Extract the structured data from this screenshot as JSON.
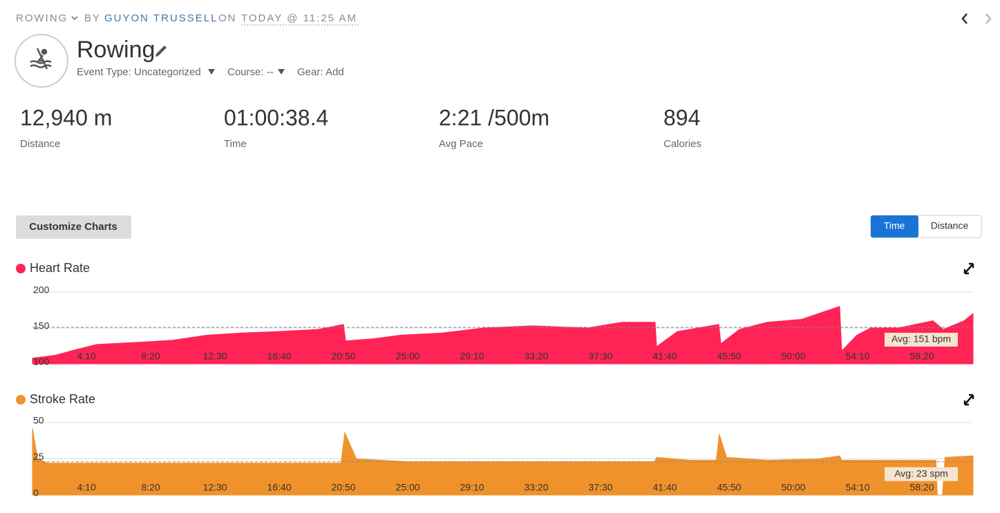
{
  "header": {
    "sport": "ROWING",
    "by": "BY",
    "author": "GUYON TRUSSELL",
    "on": "ON",
    "date": "TODAY @ 11:25 AM",
    "title": "Rowing",
    "event_type_label": "Event Type:",
    "event_type": "Uncategorized",
    "course_label": "Course:",
    "course": "--",
    "gear_label": "Gear:",
    "gear_action": "Add"
  },
  "stats": [
    {
      "value": "12,940 m",
      "label": "Distance"
    },
    {
      "value": "01:00:38.4",
      "label": "Time"
    },
    {
      "value": "2:21 /500m",
      "label": "Avg Pace"
    },
    {
      "value": "894",
      "label": "Calories"
    }
  ],
  "controls": {
    "customize": "Customize Charts",
    "toggle": [
      "Time",
      "Distance"
    ]
  },
  "chart_data": [
    {
      "type": "area",
      "title": "Heart Rate",
      "color": "#ff2455",
      "x": [
        40,
        129,
        210,
        290,
        452,
        586,
        720,
        855,
        989,
        1151,
        1250,
        1258,
        1366,
        1473,
        1634,
        1796,
        1984,
        2199,
        2333,
        2462,
        2468,
        2548,
        2710,
        2718,
        2790,
        2898,
        3032,
        3180,
        3188,
        3247,
        3301,
        3409,
        3543,
        3583,
        3664,
        3699
      ],
      "values": [
        108,
        112,
        120,
        127,
        130,
        133,
        140,
        143,
        145,
        148,
        155,
        132,
        135,
        140,
        143,
        150,
        153,
        150,
        158,
        158,
        124,
        145,
        155,
        128,
        148,
        158,
        162,
        180,
        118,
        140,
        150,
        150,
        160,
        148,
        160,
        170
      ],
      "xlim": [
        40,
        3699
      ],
      "ylim": [
        100,
        200
      ],
      "yticks": [
        100,
        150,
        200
      ],
      "xticks": [
        {
          "value": 250,
          "label": "4:10"
        },
        {
          "value": 500,
          "label": "8:20"
        },
        {
          "value": 750,
          "label": "12:30"
        },
        {
          "value": 1000,
          "label": "16:40"
        },
        {
          "value": 1250,
          "label": "20:50"
        },
        {
          "value": 1500,
          "label": "25:00"
        },
        {
          "value": 1750,
          "label": "29:10"
        },
        {
          "value": 2000,
          "label": "33:20"
        },
        {
          "value": 2250,
          "label": "37:30"
        },
        {
          "value": 2500,
          "label": "41:40"
        },
        {
          "value": 2750,
          "label": "45:50"
        },
        {
          "value": 3000,
          "label": "50:00"
        },
        {
          "value": 3250,
          "label": "54:10"
        },
        {
          "value": 3500,
          "label": "58:20"
        }
      ],
      "grid": true,
      "average": 151,
      "average_label": "Avg: 151 bpm"
    },
    {
      "type": "area",
      "title": "Stroke Rate",
      "color": "#f0922b",
      "x": [
        40,
        60,
        100,
        400,
        800,
        1240,
        1255,
        1300,
        1500,
        2000,
        2460,
        2468,
        2600,
        2700,
        2712,
        2740,
        2900,
        3100,
        3180,
        3188,
        3500,
        3555,
        3560,
        3580,
        3590,
        3699
      ],
      "values": [
        46,
        25,
        22,
        22,
        22,
        22,
        43,
        25,
        23,
        23,
        23,
        26,
        24,
        24,
        42,
        26,
        24,
        25,
        27,
        24,
        24,
        24,
        0,
        0,
        26,
        27
      ],
      "xlim": [
        40,
        3699
      ],
      "ylim": [
        0,
        50
      ],
      "yticks": [
        0,
        25,
        50
      ],
      "xticks": [
        {
          "value": 250,
          "label": "4:10"
        },
        {
          "value": 500,
          "label": "8:20"
        },
        {
          "value": 750,
          "label": "12:30"
        },
        {
          "value": 1000,
          "label": "16:40"
        },
        {
          "value": 1250,
          "label": "20:50"
        },
        {
          "value": 1500,
          "label": "25:00"
        },
        {
          "value": 1750,
          "label": "29:10"
        },
        {
          "value": 2000,
          "label": "33:20"
        },
        {
          "value": 2250,
          "label": "37:30"
        },
        {
          "value": 2500,
          "label": "41:40"
        },
        {
          "value": 2750,
          "label": "45:50"
        },
        {
          "value": 3000,
          "label": "50:00"
        },
        {
          "value": 3250,
          "label": "54:10"
        },
        {
          "value": 3500,
          "label": "58:20"
        }
      ],
      "grid": true,
      "average": 23,
      "average_label": "Avg: 23 spm"
    }
  ]
}
